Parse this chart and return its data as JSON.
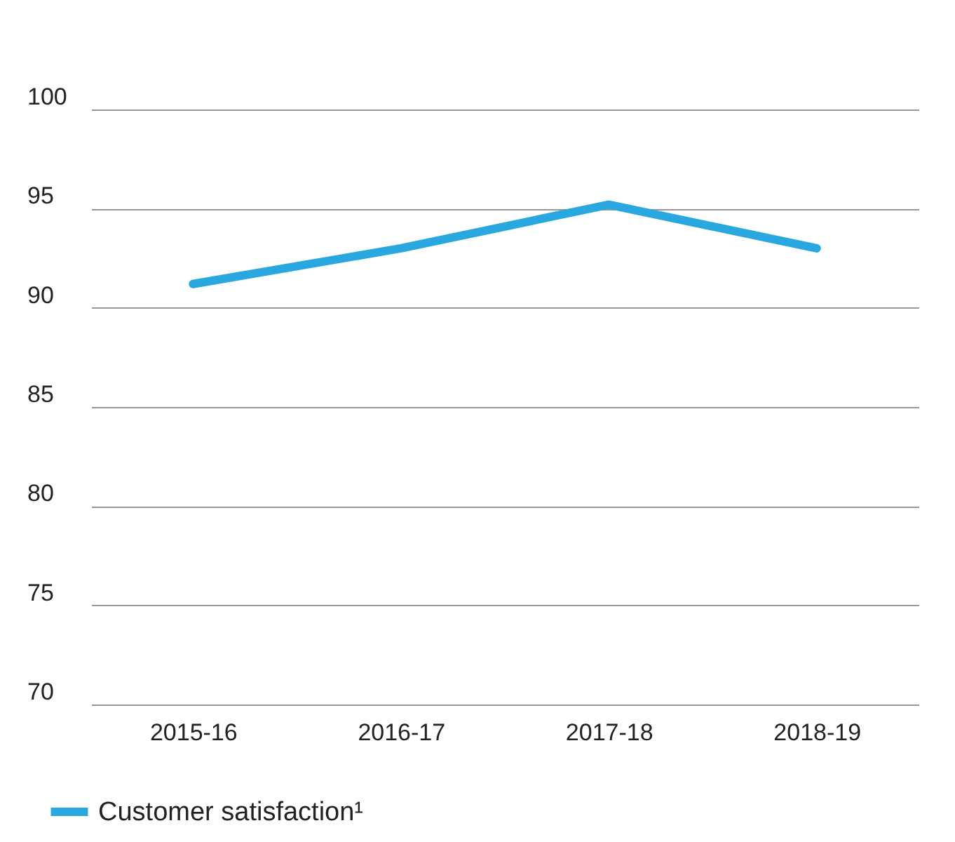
{
  "chart_data": {
    "type": "line",
    "categories": [
      "2015-16",
      "2016-17",
      "2017-18",
      "2018-19"
    ],
    "series": [
      {
        "name": "Customer satisfaction¹",
        "color": "#29a8e0",
        "values": [
          91.2,
          93.0,
          95.2,
          93.0
        ]
      }
    ],
    "ylim": [
      70,
      100
    ],
    "yticks": [
      70,
      75,
      80,
      85,
      90,
      95,
      100
    ],
    "grid": "y",
    "legend": "bottom left",
    "marker": "none",
    "line_style": "solid"
  }
}
